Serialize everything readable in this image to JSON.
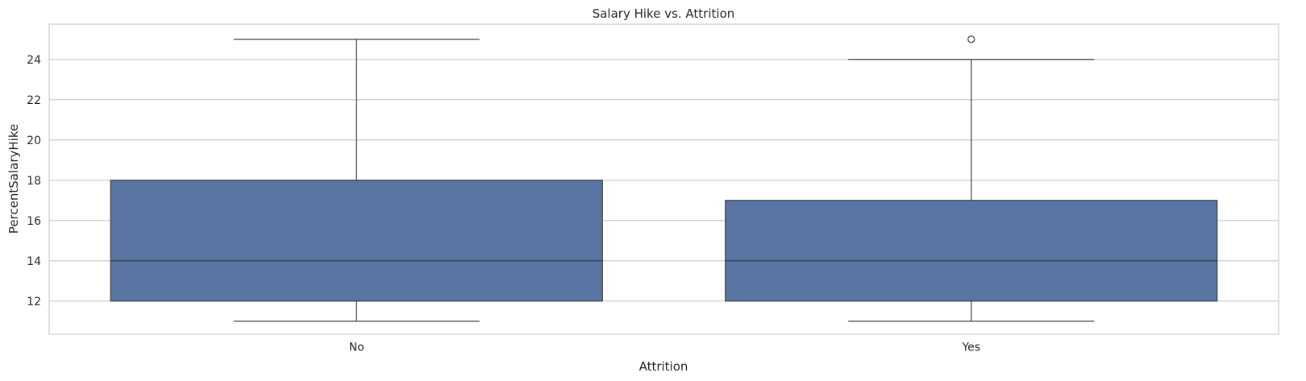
{
  "chart_data": {
    "type": "box",
    "title": "Salary Hike vs. Attrition",
    "xlabel": "Attrition",
    "ylabel": "PercentSalaryHike",
    "categories": [
      "No",
      "Yes"
    ],
    "ylim": [
      10.35,
      25.75
    ],
    "yticks": [
      12,
      14,
      16,
      18,
      20,
      22,
      24
    ],
    "grid": true,
    "boxes": [
      {
        "category": "No",
        "whisker_low": 11,
        "q1": 12,
        "median": 14,
        "q3": 18,
        "whisker_high": 25,
        "outliers": []
      },
      {
        "category": "Yes",
        "whisker_low": 11,
        "q1": 12,
        "median": 14,
        "q3": 17,
        "whisker_high": 24,
        "outliers": [
          25
        ]
      }
    ],
    "colors": {
      "box_fill": "#5975a4",
      "line": "#3d3d3d",
      "grid": "#cccccc",
      "frame": "#cccccc",
      "text": "#262626"
    }
  }
}
